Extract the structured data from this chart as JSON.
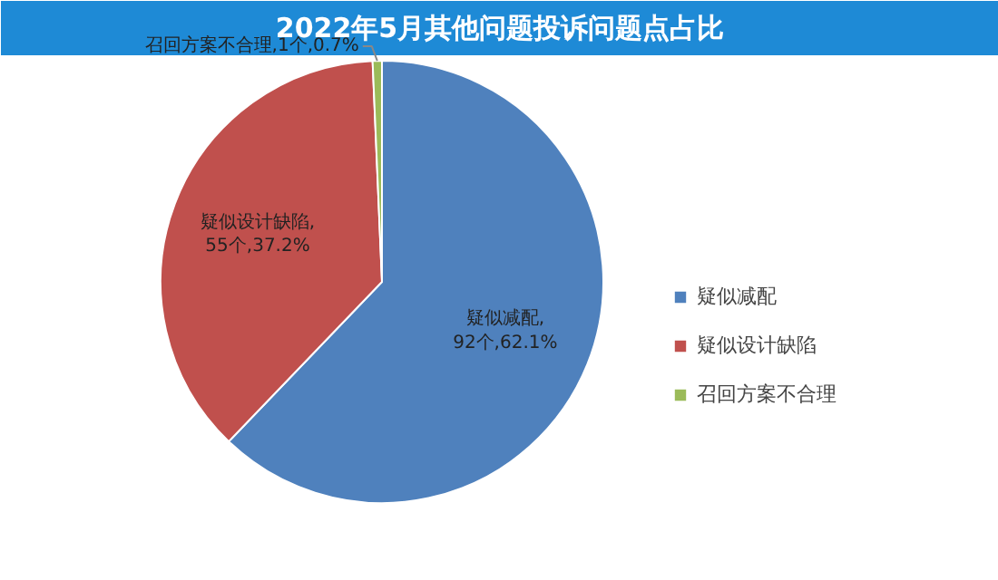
{
  "chart_data": {
    "type": "pie",
    "title": "2022年5月其他问题投诉问题点占比",
    "categories": [
      "疑似减配",
      "疑似设计缺陷",
      "召回方案不合理"
    ],
    "values": [
      92,
      55,
      1
    ],
    "colors": [
      "#4f81bd",
      "#c0504d",
      "#9bbb59"
    ],
    "value_labels": [
      "疑似减配,\n92个,62.1%",
      "疑似设计缺陷,\n55个,37.2%",
      "召回方案不合理,1个,0.7%"
    ],
    "legend": "right"
  }
}
